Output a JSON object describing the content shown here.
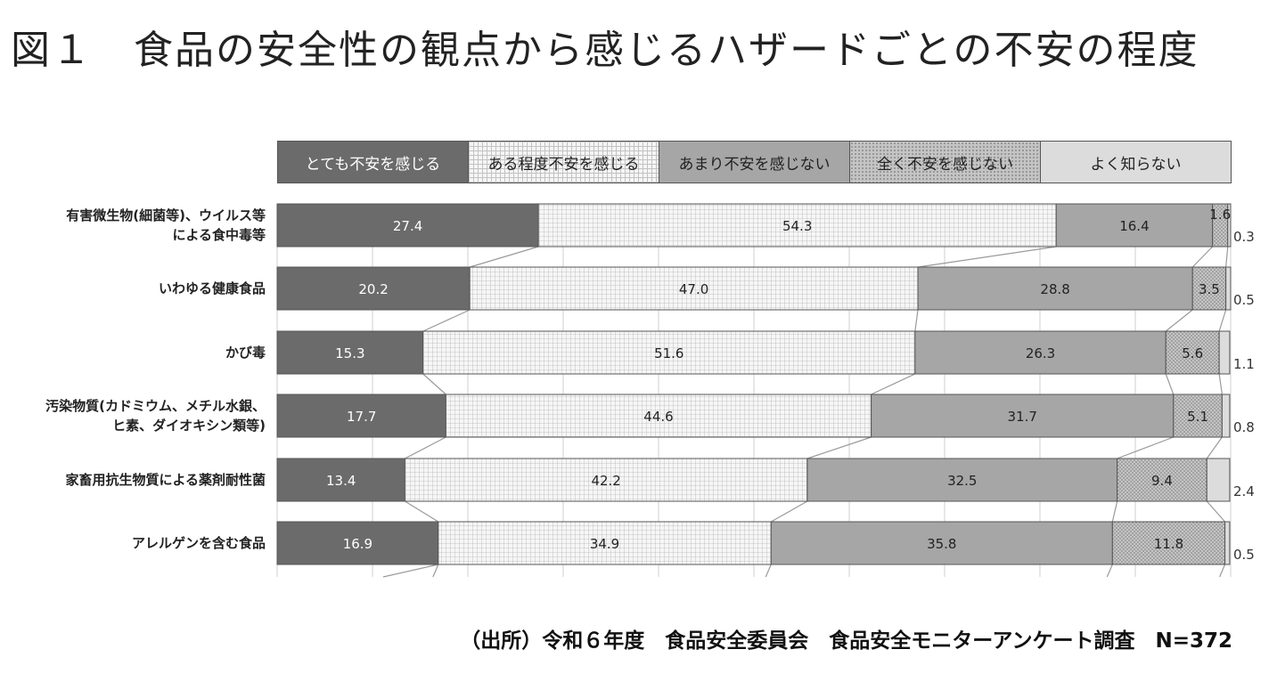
{
  "title": "図１　食品の安全性の観点から感じるハザードごとの不安の程度",
  "source": "（出所）令和６年度　食品安全委員会　食品安全モニターアンケート調査　N=372",
  "chart_data": {
    "type": "bar",
    "stacked": true,
    "orientation": "horizontal",
    "xlim": [
      0,
      100
    ],
    "legend_position": "top",
    "categories": [
      "有害微生物(細菌等)、ウイルス等による食中毒等",
      "いわゆる健康食品",
      "かび毒",
      "汚染物質(カドミウム、メチル水銀、ヒ素、ダイオキシン類等)",
      "家畜用抗生物質による薬剤耐性菌",
      "アレルゲンを含む食品"
    ],
    "category_lines": [
      [
        "有害微生物(細菌等)、ウイルス等",
        "による食中毒等"
      ],
      [
        "いわゆる健康食品"
      ],
      [
        "かび毒"
      ],
      [
        "汚染物質(カドミウム、メチル水銀、",
        "ヒ素、ダイオキシン類等)"
      ],
      [
        "家畜用抗生物質による薬剤耐性菌"
      ],
      [
        "アレルゲンを含む食品"
      ]
    ],
    "series": [
      {
        "name": "とても不安を感じる",
        "color": "#6b6b6b",
        "pattern": "solid-dark",
        "values": [
          27.4,
          20.2,
          15.3,
          17.7,
          13.4,
          16.9
        ]
      },
      {
        "name": "ある程度不安を感じる",
        "color": "#f4f4f4",
        "pattern": "grid",
        "values": [
          54.3,
          47.0,
          51.6,
          44.6,
          42.2,
          34.9
        ]
      },
      {
        "name": "あまり不安を感じない",
        "color": "#a6a6a6",
        "pattern": "solid-mid",
        "values": [
          16.4,
          28.8,
          26.3,
          31.7,
          32.5,
          35.8
        ]
      },
      {
        "name": "全く不安を感じない",
        "color": "#bdbdbd",
        "pattern": "dots",
        "values": [
          1.6,
          3.5,
          5.6,
          5.1,
          9.4,
          11.8
        ]
      },
      {
        "name": "よく知らない",
        "color": "#dcdcdc",
        "pattern": "solid-light",
        "values": [
          0.3,
          0.5,
          1.1,
          0.8,
          2.4,
          0.5
        ]
      }
    ]
  }
}
